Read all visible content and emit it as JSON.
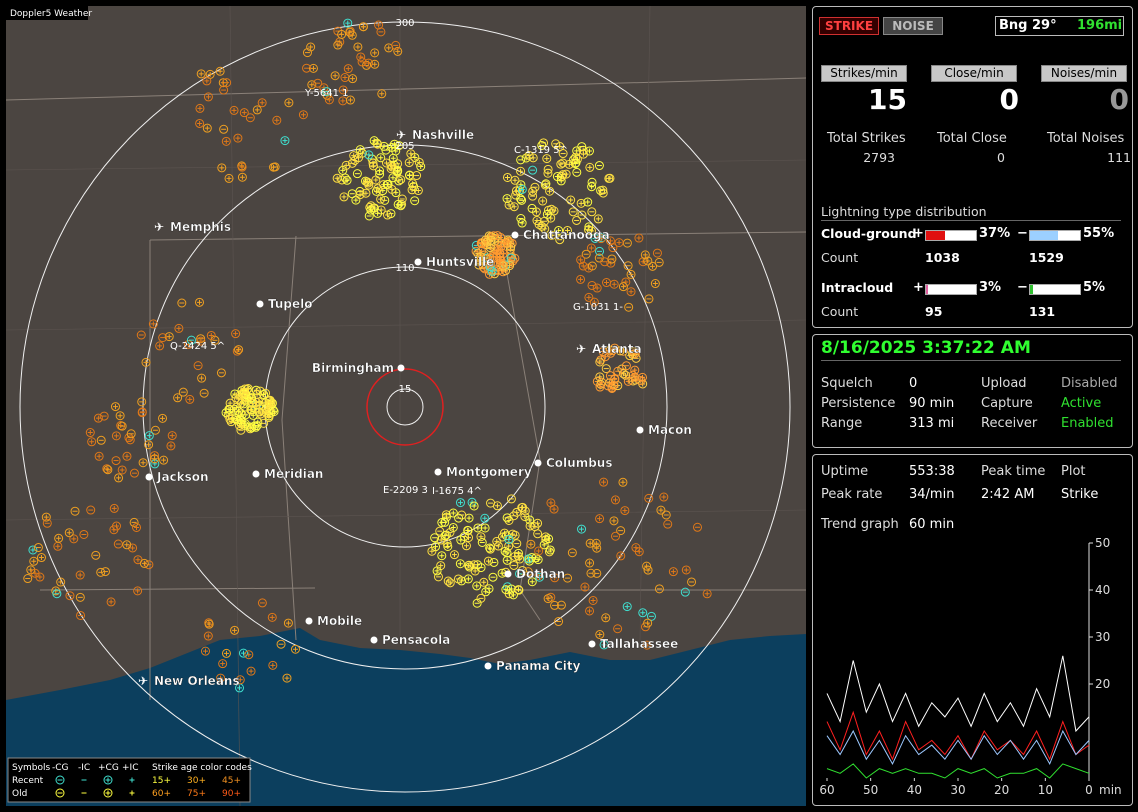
{
  "window_title": "Doppler5 Weather",
  "map": {
    "cities": [
      "Nashville",
      "Memphis",
      "Chattanooga",
      "Huntsville",
      "Tupelo",
      "Atlanta",
      "Birmingham",
      "Macon",
      "Columbus",
      "Montgomery",
      "Jackson",
      "Meridian",
      "Dothan",
      "Mobile",
      "Pensacola",
      "Panama City",
      "Tallahassee",
      "New Orleans"
    ],
    "range_labels": [
      300,
      205,
      110,
      15
    ],
    "strike_labels": [
      "Y-5641 1",
      "C-1319 5^",
      "G-1031 1-",
      "Q-2424 5^",
      "E-2209 3",
      "I-1675 4^"
    ],
    "legend": {
      "symbols_label": "Symbols",
      "symbol_headers": [
        "-CG",
        "-IC",
        "+CG",
        "+IC"
      ],
      "age_title": "Strike age color codes",
      "rows": [
        {
          "label": "Recent",
          "ages": [
            "15+",
            "30+",
            "45+"
          ]
        },
        {
          "label": "Old",
          "ages": [
            "60+",
            "75+",
            "90+"
          ]
        }
      ]
    }
  },
  "status": {
    "buttons": [
      "STRIKE",
      "NOISE"
    ],
    "bearing": "Bng 29°",
    "distance": "196mi",
    "rates": [
      {
        "label": "Strikes/min",
        "value": 15,
        "total_label": "Total Strikes",
        "total": 2793
      },
      {
        "label": "Close/min",
        "value": 0,
        "total_label": "Total Close",
        "total": 0
      },
      {
        "label": "Noises/min",
        "value": 0,
        "total_label": "Total Noises",
        "total": 111
      }
    ],
    "distribution": {
      "title": "Lightning type distribution",
      "count_label": "Count",
      "types": [
        {
          "name": "Cloud-ground",
          "plus": {
            "sign": "+",
            "percent": 37,
            "percent_label": "37%",
            "count": 1038
          },
          "minus": {
            "sign": "−",
            "percent": 55,
            "percent_label": "55%",
            "count": 1529
          }
        },
        {
          "name": "Intracloud",
          "plus": {
            "sign": "+",
            "percent": 3,
            "percent_label": "3%",
            "count": 95
          },
          "minus": {
            "sign": "−",
            "percent": 5,
            "percent_label": "5%",
            "count": 131
          }
        }
      ]
    }
  },
  "settings": {
    "datetime": "8/16/2025 3:37:22 AM",
    "rows": [
      {
        "label": "Squelch",
        "value": "0",
        "label2": "Upload",
        "value2": "Disabled"
      },
      {
        "label": "Persistence",
        "value": "90 min",
        "label2": "Capture",
        "value2": "Active"
      },
      {
        "label": "Range",
        "value": "313 mi",
        "label2": "Receiver",
        "value2": "Enabled"
      }
    ]
  },
  "stats": {
    "uptime_label": "Uptime",
    "uptime": "553:38",
    "peak_time_label": "Peak time",
    "peak_time": "2:42 AM",
    "plot_label": "Plot",
    "plot": "Strike",
    "peak_rate_label": "Peak rate",
    "peak_rate": "34/min",
    "trend_label": "Trend graph",
    "trend_value": "60 min"
  },
  "chart_data": {
    "type": "line",
    "x": [
      60,
      57,
      54,
      51,
      48,
      45,
      42,
      39,
      36,
      33,
      30,
      27,
      24,
      21,
      18,
      15,
      12,
      9,
      6,
      3,
      0
    ],
    "series": [
      {
        "color": "#ffffff",
        "values": [
          18,
          12,
          25,
          14,
          20,
          12,
          18,
          11,
          16,
          13,
          17,
          11,
          18,
          12,
          16,
          11,
          19,
          13,
          26,
          10,
          13
        ]
      },
      {
        "color": "#ff2020",
        "values": [
          12,
          6,
          14,
          5,
          10,
          4,
          12,
          6,
          8,
          5,
          9,
          4,
          10,
          6,
          8,
          5,
          10,
          4,
          12,
          5,
          7
        ]
      },
      {
        "color": "#9cc8ff",
        "values": [
          9,
          5,
          10,
          4,
          8,
          3,
          9,
          5,
          7,
          4,
          8,
          4,
          9,
          5,
          8,
          4,
          8,
          3,
          10,
          5,
          8
        ]
      },
      {
        "color": "#30e030",
        "values": [
          2,
          1,
          3,
          0,
          2,
          1,
          2,
          1,
          1,
          0,
          2,
          1,
          2,
          0,
          1,
          1,
          2,
          0,
          3,
          2,
          1
        ]
      }
    ],
    "xlim": [
      60,
      0
    ],
    "ylim": [
      0,
      50
    ],
    "yticks": [
      20,
      30,
      40,
      50
    ],
    "xticks": [
      60,
      50,
      40,
      30,
      20,
      10,
      0
    ],
    "x_unit": "min"
  }
}
